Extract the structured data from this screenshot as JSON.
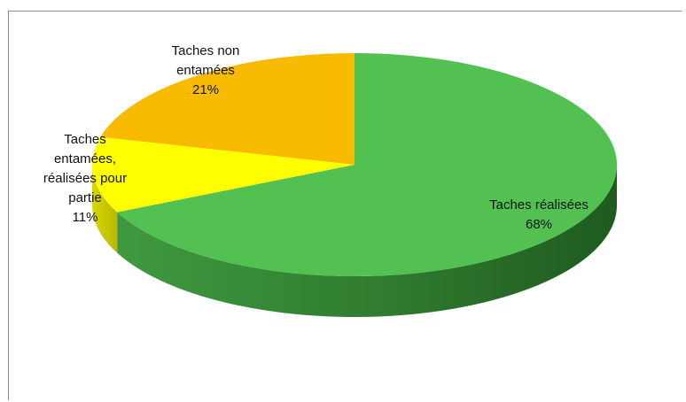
{
  "chart_data": {
    "type": "pie",
    "title": "",
    "legend": "none",
    "slices": [
      {
        "label_lines": [
          "Taches réalisées"
        ],
        "percent_label": "68%",
        "value": 68,
        "color": "#52c152"
      },
      {
        "label_lines": [
          "Taches",
          "entamées,",
          "réalisées pour",
          "partie"
        ],
        "percent_label": "11%",
        "value": 11,
        "color": "#ffff00"
      },
      {
        "label_lines": [
          "Taches non",
          "entamées"
        ],
        "percent_label": "21%",
        "value": 21,
        "color": "#f9bb00"
      }
    ]
  }
}
